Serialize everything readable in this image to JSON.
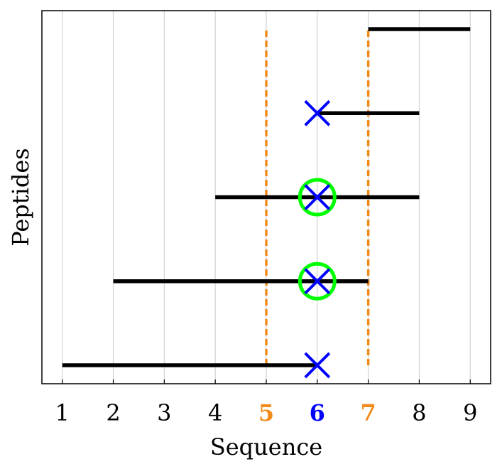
{
  "chart_data": {
    "type": "range-plot",
    "xlabel": "Sequence",
    "ylabel": "Peptides",
    "xlim": [
      0.6,
      9.4
    ],
    "ylim": [
      0.78,
      5.22
    ],
    "xticks": [
      {
        "value": 1,
        "label": "1",
        "color": "#000000",
        "bold": false
      },
      {
        "value": 2,
        "label": "2",
        "color": "#000000",
        "bold": false
      },
      {
        "value": 3,
        "label": "3",
        "color": "#000000",
        "bold": false
      },
      {
        "value": 4,
        "label": "4",
        "color": "#000000",
        "bold": false
      },
      {
        "value": 5,
        "label": "5",
        "color": "#f28a1a",
        "bold": true
      },
      {
        "value": 6,
        "label": "6",
        "color": "#0000ff",
        "bold": true
      },
      {
        "value": 7,
        "label": "7",
        "color": "#f28a1a",
        "bold": true
      },
      {
        "value": 8,
        "label": "8",
        "color": "#000000",
        "bold": false
      },
      {
        "value": 9,
        "label": "9",
        "color": "#000000",
        "bold": false
      }
    ],
    "grid": "vertical",
    "peptides": [
      {
        "y": 1,
        "start": 1,
        "end": 6
      },
      {
        "y": 2,
        "start": 2,
        "end": 7
      },
      {
        "y": 3,
        "start": 4,
        "end": 8
      },
      {
        "y": 4,
        "start": 6,
        "end": 8
      },
      {
        "y": 5,
        "start": 7,
        "end": 9
      }
    ],
    "markers": [
      {
        "x": 6,
        "y": 1,
        "shape": "cross",
        "color": "#0000ff"
      },
      {
        "x": 6,
        "y": 2,
        "shape": "cross",
        "color": "#0000ff"
      },
      {
        "x": 6,
        "y": 3,
        "shape": "cross",
        "color": "#0000ff"
      },
      {
        "x": 6,
        "y": 4,
        "shape": "cross",
        "color": "#0000ff"
      },
      {
        "x": 6,
        "y": 2,
        "shape": "circle",
        "color": "#00ff00"
      },
      {
        "x": 6,
        "y": 3,
        "shape": "circle",
        "color": "#00ff00"
      }
    ],
    "reference_lines": [
      {
        "x": 5,
        "y_from": 1,
        "y_to": 5,
        "color": "#f28a1a",
        "style": "dashed"
      },
      {
        "x": 7,
        "y_from": 1,
        "y_to": 5,
        "color": "#f28a1a",
        "style": "dashed"
      }
    ],
    "colors": {
      "range_line": "#000000",
      "grid": "#d3d3d3"
    }
  }
}
